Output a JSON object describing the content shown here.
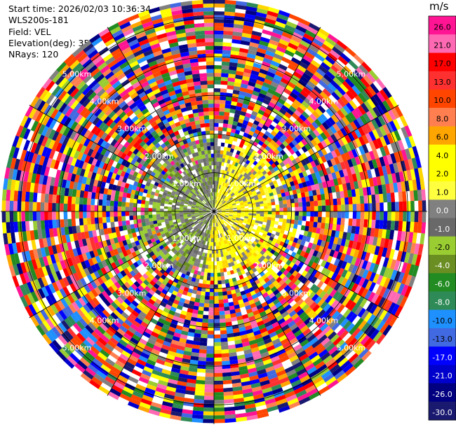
{
  "info": {
    "start_time": "Start time: 2026/02/03 10:36:34",
    "site": "WLS200s-181",
    "field": "Field: VEL",
    "elevation": "Elevation(deg): 35.00",
    "nrays": "NRays: 120"
  },
  "chart_data": {
    "type": "ppi",
    "field": "VEL",
    "units": "m/s",
    "nrays": 120,
    "elevation_deg": 35.0,
    "max_range_km": 5.5,
    "range_rings_km": [
      1,
      2,
      3,
      4,
      5
    ],
    "ring_labels": [
      "1.00km",
      "2.00km",
      "3.00km",
      "4.00km",
      "5.00km"
    ],
    "colorbar": {
      "ticks": [
        "26.0",
        "21.0",
        "17.0",
        "13.0",
        "10.0",
        "8.0",
        "6.0",
        "4.0",
        "2.0",
        "1.0",
        "0.0",
        "-1.0",
        "-2.0",
        "-4.0",
        "-6.0",
        "-8.0",
        "-10.0",
        "-13.0",
        "-17.0",
        "-21.0",
        "-26.0",
        "-30.0"
      ],
      "colors": [
        "#ff1493",
        "#ff69b4",
        "#ff0000",
        "#ff3030",
        "#ff4500",
        "#ff7f50",
        "#ffa500",
        "#ffff00",
        "#ffff00",
        "#ffff40",
        "#808080",
        "#696969",
        "#9acd32",
        "#6b8e23",
        "#228b22",
        "#2e8b57",
        "#1e90ff",
        "#4169e1",
        "#0000ff",
        "#0000cd",
        "#000080",
        "#191970"
      ]
    }
  }
}
